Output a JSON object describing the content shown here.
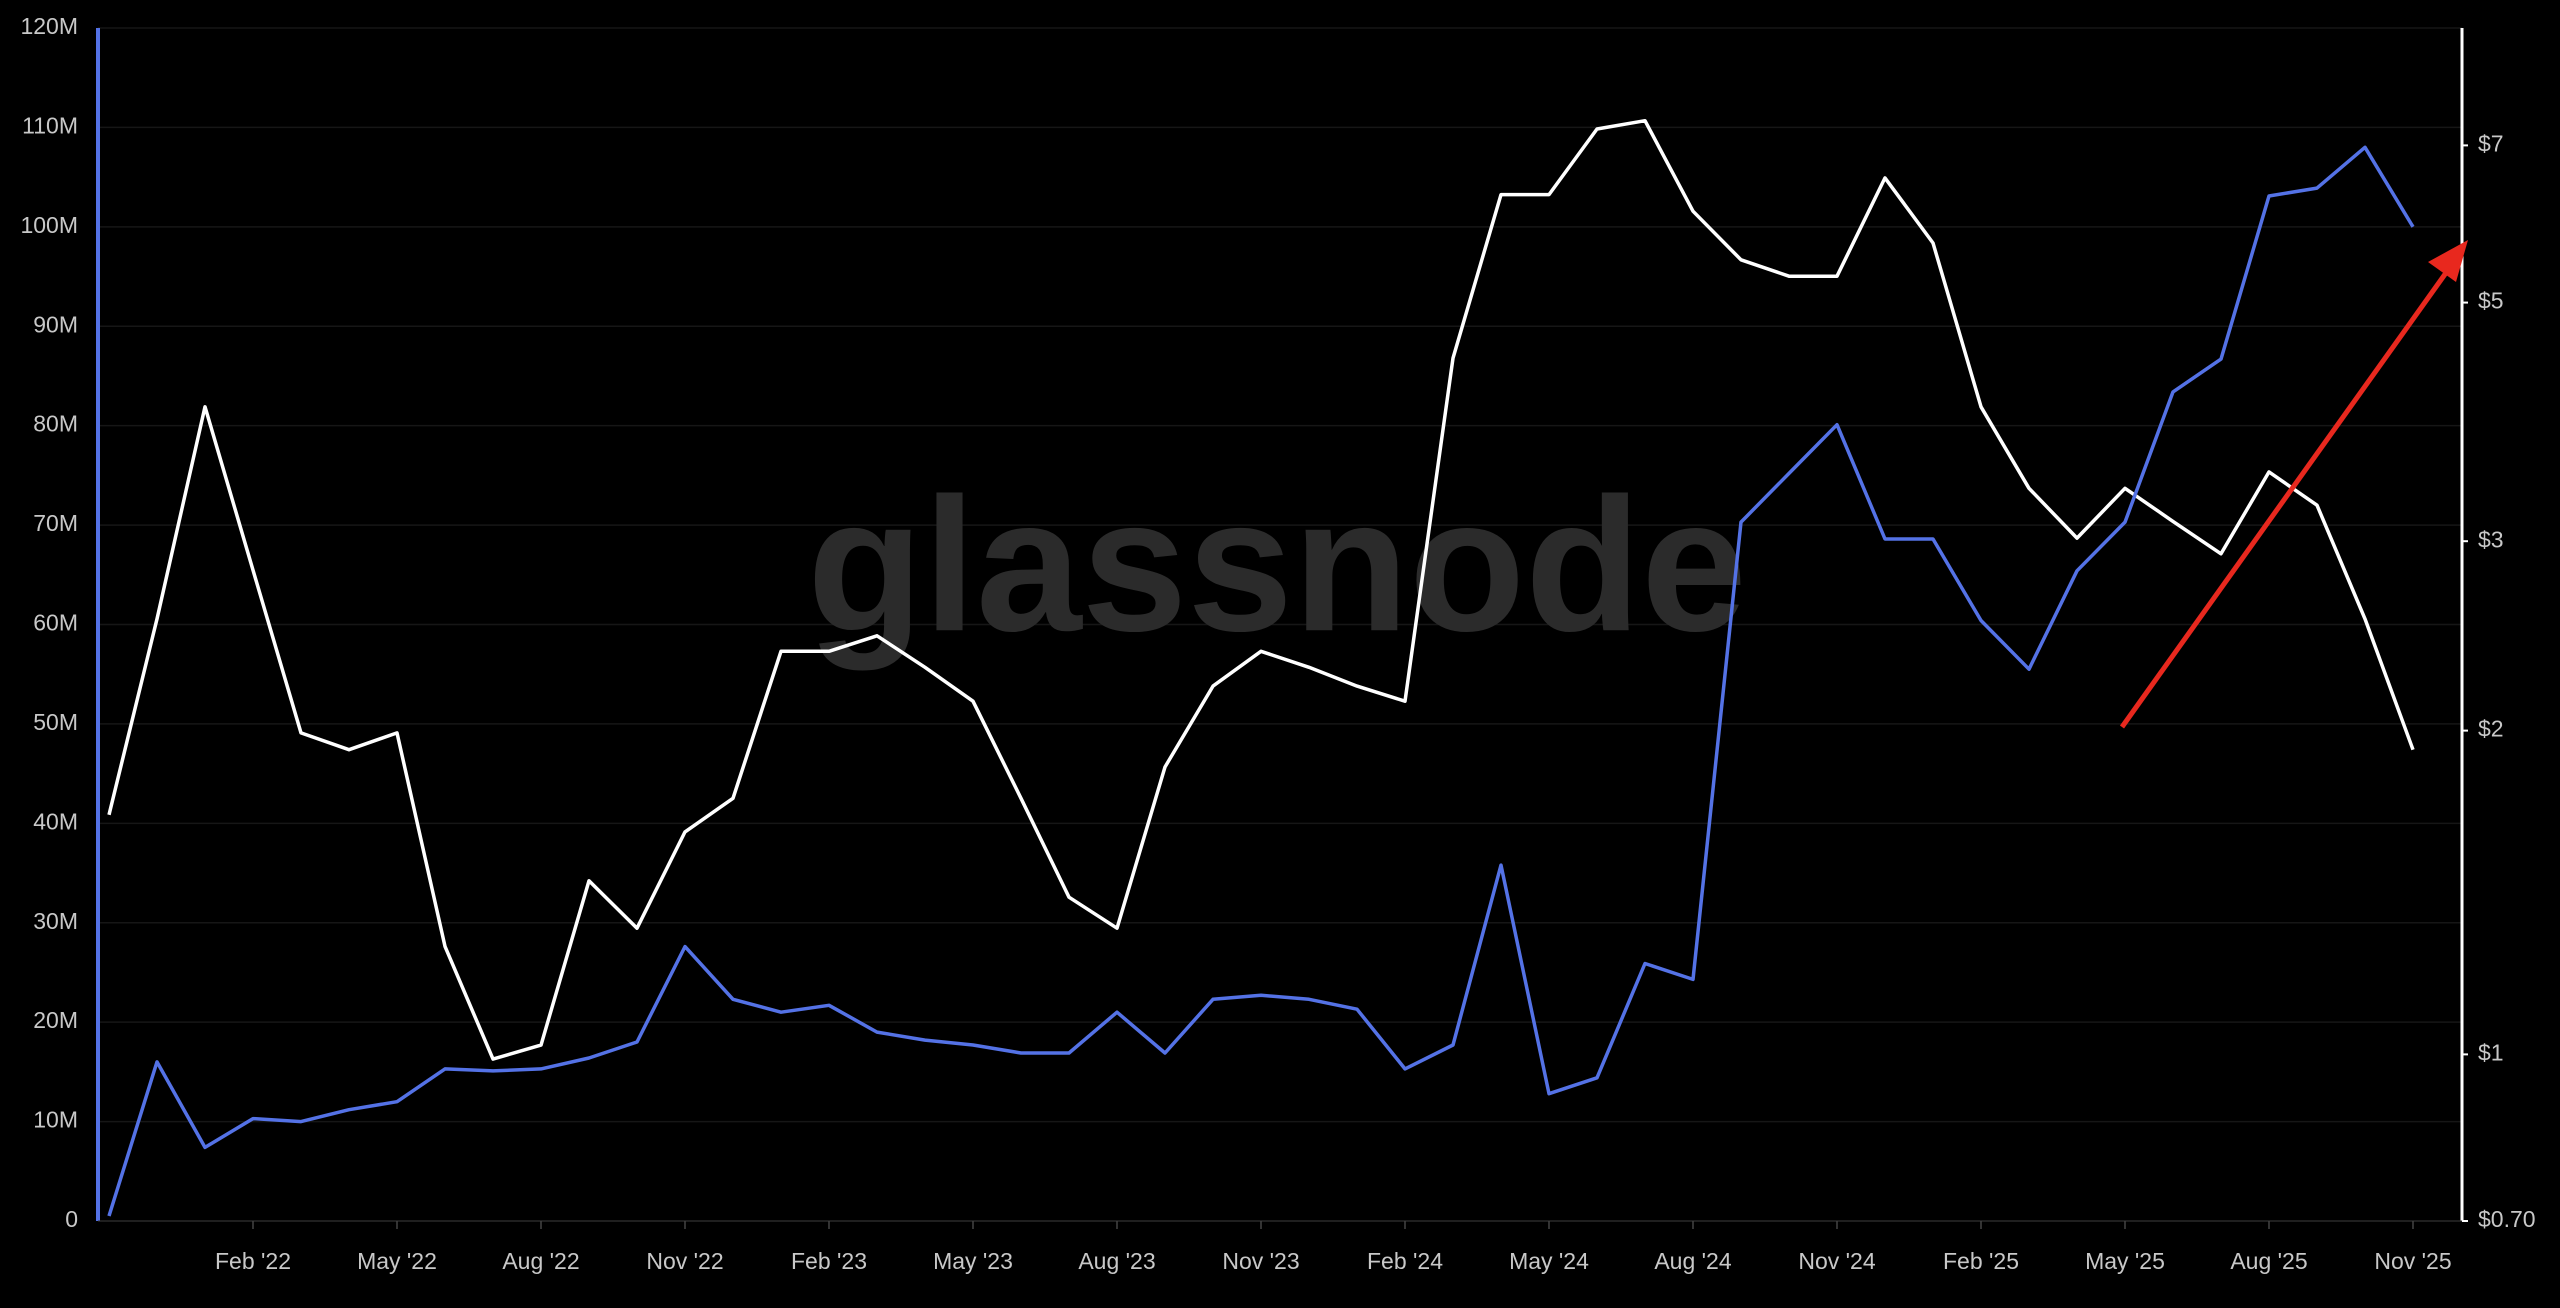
{
  "chart_data": {
    "type": "line",
    "watermark": "glassnode",
    "x": [
      "2021-11",
      "2021-12",
      "2022-01",
      "2022-02",
      "2022-03",
      "2022-04",
      "2022-05",
      "2022-06",
      "2022-07",
      "2022-08",
      "2022-09",
      "2022-10",
      "2022-11",
      "2022-12",
      "2023-01",
      "2023-02",
      "2023-03",
      "2023-04",
      "2023-05",
      "2023-06",
      "2023-07",
      "2023-08",
      "2023-09",
      "2023-10",
      "2023-11",
      "2023-12",
      "2024-01",
      "2024-02",
      "2024-03",
      "2024-04",
      "2024-05",
      "2024-06",
      "2024-07",
      "2024-08",
      "2024-09",
      "2024-10",
      "2024-11",
      "2024-12",
      "2025-01",
      "2025-02",
      "2025-03",
      "2025-04",
      "2025-05",
      "2025-06",
      "2025-07",
      "2025-08",
      "2025-09",
      "2025-10",
      "2025-11"
    ],
    "xlim": [
      "2021-11",
      "2025-11"
    ],
    "xticks": [
      {
        "value": "2022-02",
        "label": "Feb '22"
      },
      {
        "value": "2022-05",
        "label": "May '22"
      },
      {
        "value": "2022-08",
        "label": "Aug '22"
      },
      {
        "value": "2022-11",
        "label": "Nov '22"
      },
      {
        "value": "2023-02",
        "label": "Feb '23"
      },
      {
        "value": "2023-05",
        "label": "May '23"
      },
      {
        "value": "2023-08",
        "label": "Aug '23"
      },
      {
        "value": "2023-11",
        "label": "Nov '23"
      },
      {
        "value": "2024-02",
        "label": "Feb '24"
      },
      {
        "value": "2024-05",
        "label": "May '24"
      },
      {
        "value": "2024-08",
        "label": "Aug '24"
      },
      {
        "value": "2024-11",
        "label": "Nov '24"
      },
      {
        "value": "2025-02",
        "label": "Feb '25"
      },
      {
        "value": "2025-05",
        "label": "May '25"
      },
      {
        "value": "2025-08",
        "label": "Aug '25"
      },
      {
        "value": "2025-11",
        "label": "Nov '25"
      }
    ],
    "ylim": [
      0,
      120000000
    ],
    "yticks": [
      0,
      {
        "value": 10000000,
        "label": "10M"
      },
      {
        "value": 20000000,
        "label": "20M"
      },
      {
        "value": 30000000,
        "label": "30M"
      },
      {
        "value": 40000000,
        "label": "40M"
      },
      {
        "value": 50000000,
        "label": "50M"
      },
      {
        "value": 60000000,
        "label": "60M"
      },
      {
        "value": 70000000,
        "label": "70M"
      },
      {
        "value": 80000000,
        "label": "80M"
      },
      {
        "value": 90000000,
        "label": "90M"
      },
      {
        "value": 100000000,
        "label": "100M"
      },
      {
        "value": 110000000,
        "label": "110M"
      },
      {
        "value": 120000000,
        "label": "120M"
      }
    ],
    "y2lim": [
      0.7,
      9.0
    ],
    "y2log": true,
    "y2ticks": [
      {
        "value": 0.7,
        "label": "$0.70"
      },
      {
        "value": 1,
        "label": "$1"
      },
      {
        "value": 2,
        "label": "$2"
      },
      {
        "value": 3,
        "label": "$3"
      },
      {
        "value": 5,
        "label": "$5"
      },
      {
        "value": 7,
        "label": "$7"
      }
    ],
    "grid": true,
    "series": [
      {
        "color": "#ffffff",
        "axis": "y2",
        "values": [
          1.67,
          2.54,
          4.0,
          2.82,
          1.99,
          1.92,
          1.99,
          1.26,
          0.99,
          1.02,
          1.45,
          1.31,
          1.61,
          1.73,
          2.37,
          2.37,
          2.45,
          2.29,
          2.13,
          1.73,
          1.4,
          1.31,
          1.85,
          2.2,
          2.37,
          2.29,
          2.2,
          2.13,
          4.44,
          6.3,
          6.3,
          7.25,
          7.38,
          6.08,
          5.48,
          5.29,
          5.29,
          6.53,
          5.68,
          4.0,
          3.36,
          3.02,
          3.36,
          3.13,
          2.92,
          3.48,
          3.24,
          2.54,
          1.92
        ]
      },
      {
        "color": "#5472e6",
        "values": [
          500000,
          16000000,
          7400000,
          10300000,
          10000000,
          11200000,
          12000000,
          15300000,
          15100000,
          15300000,
          16400000,
          18000000,
          27600000,
          22300000,
          21000000,
          21700000,
          19000000,
          18200000,
          17700000,
          16900000,
          16900000,
          21000000,
          16900000,
          22300000,
          22700000,
          22300000,
          21300000,
          15300000,
          17700000,
          35800000,
          12800000,
          14400000,
          25900000,
          24300000,
          70300000,
          75200000,
          80100000,
          68600000,
          68600000,
          60400000,
          55500000,
          65400000,
          70300000,
          83400000,
          86700000,
          103100000,
          103900000,
          108000000,
          100000000
        ]
      }
    ]
  }
}
